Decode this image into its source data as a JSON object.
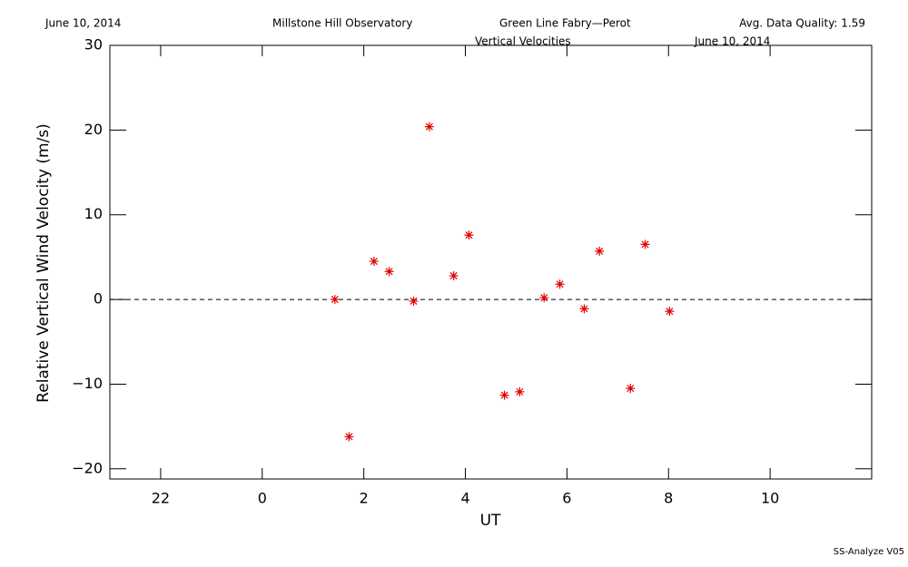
{
  "chart_data": {
    "type": "scatter",
    "header": {
      "date": "June 10, 2014",
      "site": "Millstone Hill Observatory",
      "instrument": "Green Line Fabry—Perot",
      "quality": "Avg. Data Quality: 1.59"
    },
    "title": "Vertical Velocities",
    "subtitle": "June 10, 2014",
    "footer": "SS-Analyze V05",
    "x_label": "UT",
    "y_label": "Relative Vertical Wind Velocity (m/s)",
    "xlim": [
      -3,
      12
    ],
    "ylim": [
      -21.2,
      30
    ],
    "xticks": [
      {
        "value": -2,
        "label": "22"
      },
      0,
      2,
      4,
      6,
      8,
      10
    ],
    "yticks": [
      {
        "value": -20,
        "label": "−20"
      },
      {
        "value": -10,
        "label": "−10"
      },
      0,
      10,
      20,
      30
    ],
    "reference_line": 0,
    "color": "#e00000",
    "x": [
      1.43,
      1.71,
      2.2,
      2.5,
      2.98,
      3.29,
      3.77,
      4.07,
      4.77,
      5.07,
      5.55,
      5.86,
      6.34,
      6.64,
      7.25,
      7.54,
      8.02
    ],
    "values": [
      0.0,
      -16.2,
      4.5,
      3.3,
      -0.2,
      20.4,
      2.8,
      7.6,
      -11.3,
      -10.9,
      0.2,
      1.8,
      -1.1,
      5.7,
      -10.5,
      6.5,
      -1.4
    ]
  }
}
